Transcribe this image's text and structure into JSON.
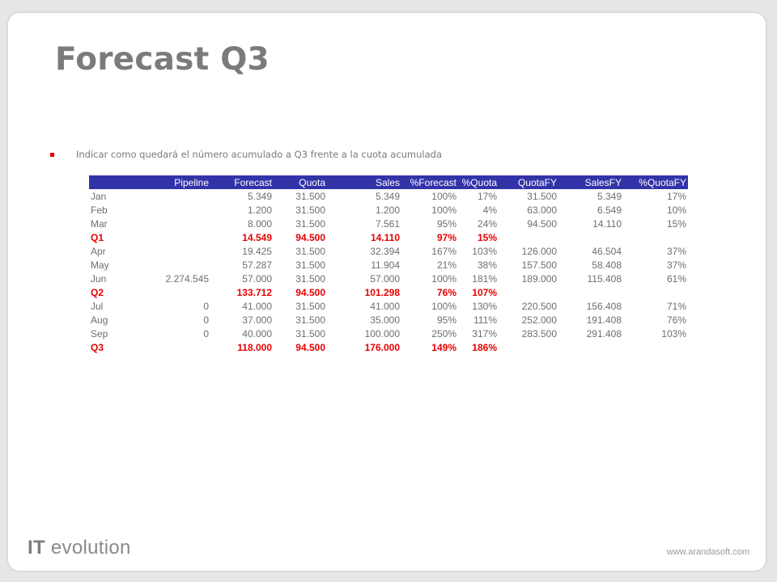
{
  "slide": {
    "title": "Forecast Q3",
    "bullet": "Indicar como quedará el número acumulado a Q3 frente a la cuota acumulada",
    "brand_it": "IT",
    "brand_rest": "evolution",
    "url": "www.arandasoft.com",
    "colors": {
      "header_bg": "#3333a8",
      "summary_text": "#e60000",
      "bullet": "#e60000"
    }
  },
  "table": {
    "columns": [
      "",
      "Pipeline",
      "Forecast",
      "Quota",
      "Sales",
      "%Forecast",
      "%Quota",
      "QuotaFY",
      "SalesFY",
      "%QuotaFY"
    ],
    "rows": [
      {
        "type": "month",
        "cells": [
          "Jan",
          "",
          "5.349",
          "31.500",
          "5.349",
          "100%",
          "17%",
          "31.500",
          "5.349",
          "17%"
        ]
      },
      {
        "type": "month",
        "cells": [
          "Feb",
          "",
          "1.200",
          "31.500",
          "1.200",
          "100%",
          "4%",
          "63.000",
          "6.549",
          "10%"
        ]
      },
      {
        "type": "month",
        "cells": [
          "Mar",
          "",
          "8.000",
          "31.500",
          "7.561",
          "95%",
          "24%",
          "94.500",
          "14.110",
          "15%"
        ]
      },
      {
        "type": "summary",
        "cells": [
          "Q1",
          "",
          "14.549",
          "94.500",
          "14.110",
          "97%",
          "15%",
          "",
          "",
          ""
        ]
      },
      {
        "type": "month",
        "cells": [
          "Apr",
          "",
          "19.425",
          "31.500",
          "32.394",
          "167%",
          "103%",
          "126.000",
          "46.504",
          "37%"
        ]
      },
      {
        "type": "month",
        "cells": [
          "May",
          "",
          "57.287",
          "31.500",
          "11.904",
          "21%",
          "38%",
          "157.500",
          "58.408",
          "37%"
        ]
      },
      {
        "type": "month",
        "cells": [
          "Jun",
          "2.274.545",
          "57.000",
          "31.500",
          "57.000",
          "100%",
          "181%",
          "189.000",
          "115.408",
          "61%"
        ]
      },
      {
        "type": "summary",
        "cells": [
          "Q2",
          "",
          "133.712",
          "94.500",
          "101.298",
          "76%",
          "107%",
          "",
          "",
          ""
        ]
      },
      {
        "type": "month",
        "cells": [
          "Jul",
          "0",
          "41.000",
          "31.500",
          "41.000",
          "100%",
          "130%",
          "220.500",
          "156.408",
          "71%"
        ]
      },
      {
        "type": "month",
        "cells": [
          "Aug",
          "0",
          "37.000",
          "31.500",
          "35.000",
          "95%",
          "111%",
          "252.000",
          "191.408",
          "76%"
        ]
      },
      {
        "type": "month",
        "cells": [
          "Sep",
          "0",
          "40.000",
          "31.500",
          "100.000",
          "250%",
          "317%",
          "283.500",
          "291.408",
          "103%"
        ]
      },
      {
        "type": "summary",
        "cells": [
          "Q3",
          "",
          "118.000",
          "94.500",
          "176.000",
          "149%",
          "186%",
          "",
          "",
          ""
        ]
      }
    ]
  }
}
